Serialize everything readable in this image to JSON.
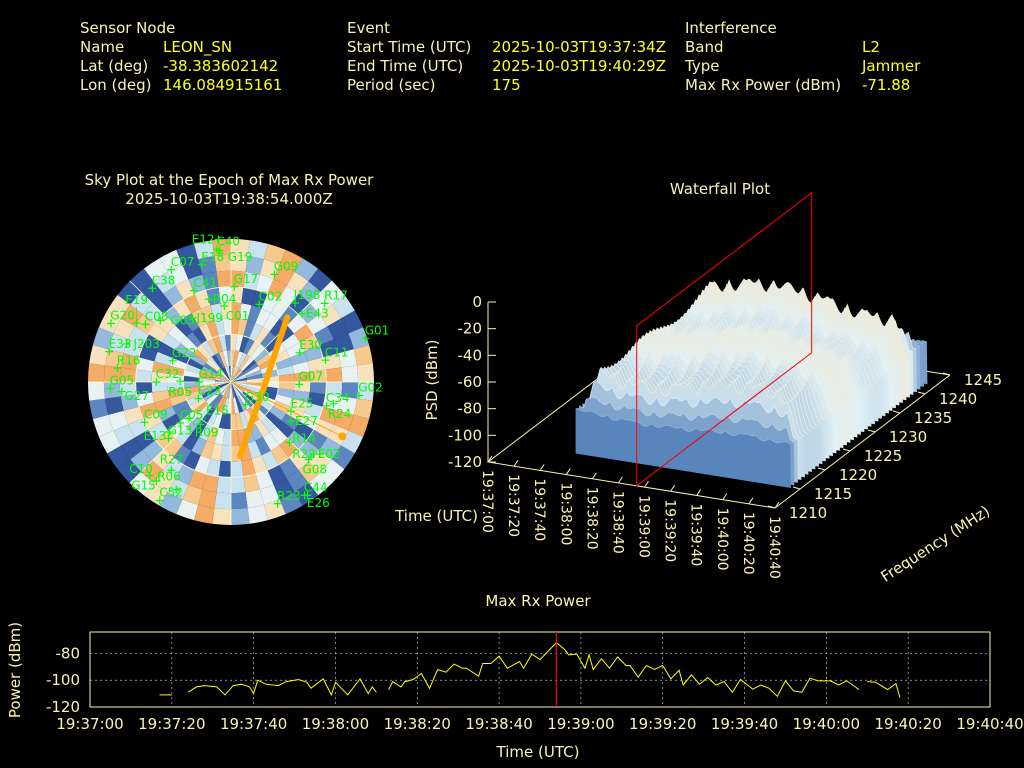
{
  "header": {
    "sensor": {
      "title": "Sensor Node",
      "name_label": "Name",
      "name": "LEON_SN",
      "lat_label": "Lat (deg)",
      "lat": "-38.383602142",
      "lon_label": "Lon (deg)",
      "lon": "146.084915161"
    },
    "event": {
      "title": "Event",
      "start_label": "Start Time (UTC)",
      "start": "2025-10-03T19:37:34Z",
      "end_label": "End Time (UTC)",
      "end": "2025-10-03T19:40:29Z",
      "period_label": "Period (sec)",
      "period": "175"
    },
    "interference": {
      "title": "Interference",
      "band_label": "Band",
      "band": "L2",
      "type_label": "Type",
      "type": "Jammer",
      "power_label": "Max Rx Power (dBm)",
      "power": "-71.88"
    }
  },
  "colors": {
    "label": "#f8f4b0",
    "value": "#ffff20",
    "satellite": "#00ff00",
    "jammer": "#ffa500",
    "marker": "#ff0000",
    "series": "#ffff00"
  },
  "chart_data": [
    {
      "type": "polar-scatter",
      "title": "Sky Plot at the Epoch of Max Rx Power",
      "subtitle": "2025-10-03T19:38:54.000Z",
      "elevation_rings": [
        0,
        30,
        60
      ],
      "satellites": [
        {
          "id": "G01",
          "az": 72,
          "el": 1
        },
        {
          "id": "C11",
          "az": 77,
          "el": 29
        },
        {
          "id": "E30",
          "az": 67,
          "el": 43
        },
        {
          "id": "G07",
          "az": 92,
          "el": 47
        },
        {
          "id": "G02",
          "az": 96,
          "el": 9
        },
        {
          "id": "C34",
          "az": 104,
          "el": 28
        },
        {
          "id": "R24",
          "az": 102,
          "el": 24
        },
        {
          "id": "G30",
          "az": 147,
          "el": 73
        },
        {
          "id": "E25",
          "az": 116,
          "el": 48
        },
        {
          "id": "E27",
          "az": 123,
          "el": 45
        },
        {
          "id": "R14",
          "az": 136,
          "el": 37
        },
        {
          "id": "E02",
          "az": 131,
          "el": 21
        },
        {
          "id": "G08",
          "az": 135,
          "el": 21
        },
        {
          "id": "R22",
          "az": 129,
          "el": 18
        },
        {
          "id": "C44",
          "az": 147,
          "el": 5
        },
        {
          "id": "E26",
          "az": 146,
          "el": 4
        },
        {
          "id": "R23",
          "az": 159,
          "el": 8
        },
        {
          "id": "C52",
          "az": 211,
          "el": 3
        },
        {
          "id": "R06",
          "az": 207,
          "el": 14
        },
        {
          "id": "G15",
          "az": 221,
          "el": 12
        },
        {
          "id": "C10",
          "az": 217,
          "el": 12
        },
        {
          "id": "R27",
          "az": 214,
          "el": 23
        },
        {
          "id": "G13",
          "az": 228,
          "el": 37
        },
        {
          "id": "C09",
          "az": 245,
          "el": 30
        },
        {
          "id": "C05",
          "az": 231,
          "el": 49
        },
        {
          "id": "E13",
          "az": 231,
          "el": 40
        },
        {
          "id": "C23",
          "az": 243,
          "el": 67
        },
        {
          "id": "R09",
          "az": 229,
          "el": 55
        },
        {
          "id": "E15",
          "az": 216,
          "el": 57
        },
        {
          "id": "C32",
          "az": 270,
          "el": 43
        },
        {
          "id": "R05",
          "az": 271,
          "el": 58
        },
        {
          "id": "G14",
          "az": 270,
          "el": 70
        },
        {
          "id": "G22",
          "az": 290,
          "el": 51
        },
        {
          "id": "R16",
          "az": 277,
          "el": 18
        },
        {
          "id": "G05",
          "az": 267,
          "el": 14
        },
        {
          "id": "G27",
          "az": 265,
          "el": 21
        },
        {
          "id": "E33",
          "az": 284,
          "el": 11
        },
        {
          "id": "J203",
          "az": 290,
          "el": 20
        },
        {
          "id": "G20",
          "az": 296,
          "el": 6
        },
        {
          "id": "C08",
          "az": 304,
          "el": 25
        },
        {
          "id": "G03",
          "az": 311,
          "el": 31
        },
        {
          "id": "E19",
          "az": 302,
          "el": 20
        },
        {
          "id": "C38",
          "az": 320,
          "el": 13
        },
        {
          "id": "C07",
          "az": 332,
          "el": 10
        },
        {
          "id": "E18",
          "az": 346,
          "el": 14
        },
        {
          "id": "C40",
          "az": 354,
          "el": 6
        },
        {
          "id": "G19",
          "az": 355,
          "el": 7
        },
        {
          "id": "E12",
          "az": 355,
          "el": 0
        },
        {
          "id": "C41",
          "az": 338,
          "el": 28
        },
        {
          "id": "R04",
          "az": 345,
          "el": 36
        },
        {
          "id": "J199",
          "az": 329,
          "el": 43
        },
        {
          "id": "G17",
          "az": 2,
          "el": 30
        },
        {
          "id": "C01",
          "az": 355,
          "el": 42
        },
        {
          "id": "C02",
          "az": 20,
          "el": 38
        },
        {
          "id": "G09",
          "az": 22,
          "el": 17
        },
        {
          "id": "J198",
          "az": 39,
          "el": 26
        },
        {
          "id": "E43",
          "az": 46,
          "el": 28
        },
        {
          "id": "R17",
          "az": 50,
          "el": 13
        }
      ],
      "jammer_track": [
        [
          41,
          36
        ],
        [
          57,
          57
        ],
        [
          100,
          69
        ],
        [
          152,
          62
        ],
        [
          173,
          43
        ]
      ],
      "jammer_direction": {
        "az": 116,
        "el": 12
      }
    },
    {
      "type": "surface",
      "title": "Waterfall Plot",
      "xlabel": "Time (UTC)",
      "ylabel": "Frequency (MHz)",
      "zlabel": "PSD (dBm)",
      "x_ticks": [
        "19:37:00",
        "19:37:20",
        "19:37:40",
        "19:38:00",
        "19:38:20",
        "19:38:40",
        "19:39:00",
        "19:39:20",
        "19:39:40",
        "19:40:00",
        "19:40:20",
        "19:40:40"
      ],
      "y_ticks": [
        "1210",
        "1215",
        "1220",
        "1225",
        "1230",
        "1235",
        "1240",
        "1245"
      ],
      "z_ticks": [
        "0",
        "-20",
        "-40",
        "-60",
        "-80",
        "-100",
        "-120"
      ],
      "zlim": [
        -120,
        0
      ],
      "epoch_marker": "19:38:54"
    },
    {
      "type": "line",
      "title": "Max Rx Power",
      "xlabel": "Time (UTC)",
      "ylabel": "Power (dBm)",
      "x_ticks": [
        "19:37:00",
        "19:37:20",
        "19:37:40",
        "19:38:00",
        "19:38:20",
        "19:38:40",
        "19:39:00",
        "19:39:20",
        "19:39:40",
        "19:40:00",
        "19:40:20",
        "19:40:40"
      ],
      "y_ticks": [
        "-80",
        "-100",
        "-120"
      ],
      "xlim": [
        "19:37:00",
        "19:40:40"
      ],
      "ylim": [
        -120,
        -64
      ],
      "grid": true,
      "marker_time": "19:38:54",
      "segments": [
        [
          [
            "19:37:17",
            -111
          ],
          [
            "19:37:20",
            -111
          ]
        ],
        [
          [
            "19:37:24",
            -109
          ],
          [
            "19:37:26",
            -105
          ],
          [
            "19:37:28",
            -104
          ],
          [
            "19:37:31",
            -105
          ],
          [
            "19:37:33",
            -111
          ],
          [
            "19:37:35",
            -104
          ],
          [
            "19:37:37",
            -103
          ],
          [
            "19:37:39",
            -105
          ],
          [
            "19:37:40",
            -110
          ],
          [
            "19:37:41",
            -100
          ],
          [
            "19:37:43",
            -103
          ],
          [
            "19:37:46",
            -104
          ],
          [
            "19:37:48",
            -101
          ],
          [
            "19:37:51",
            -99.5
          ],
          [
            "19:37:53",
            -101.5
          ],
          [
            "19:37:54",
            -106
          ],
          [
            "19:37:57",
            -99
          ],
          [
            "19:37:59",
            -111
          ],
          [
            "19:38:00",
            -101.5
          ],
          [
            "19:38:03",
            -111
          ],
          [
            "19:38:06",
            -99
          ],
          [
            "19:38:08",
            -110
          ],
          [
            "19:38:09",
            -105
          ],
          [
            "19:38:10",
            -109
          ]
        ],
        [
          [
            "19:38:13",
            -107
          ],
          [
            "19:38:14",
            -101
          ],
          [
            "19:38:16",
            -105
          ],
          [
            "19:38:17",
            -101
          ],
          [
            "19:38:19",
            -99.5
          ],
          [
            "19:38:21",
            -95
          ],
          [
            "19:38:23",
            -106
          ],
          [
            "19:38:25",
            -92
          ],
          [
            "19:38:27",
            -94
          ],
          [
            "19:38:29",
            -88
          ],
          [
            "19:38:31",
            -91
          ],
          [
            "19:38:32",
            -91
          ],
          [
            "19:38:35",
            -97
          ],
          [
            "19:38:36",
            -87.5
          ],
          [
            "19:38:38",
            -87.5
          ],
          [
            "19:38:40",
            -82
          ],
          [
            "19:38:42",
            -91
          ],
          [
            "19:38:45",
            -86
          ],
          [
            "19:38:46",
            -91
          ],
          [
            "19:38:48",
            -80.5
          ],
          [
            "19:38:50",
            -84.6
          ],
          [
            "19:38:54",
            -71.88
          ],
          [
            "19:38:56",
            -77
          ],
          [
            "19:38:57",
            -81
          ],
          [
            "19:38:59",
            -80.5
          ],
          [
            "19:39:01",
            -91
          ],
          [
            "19:39:02",
            -81
          ],
          [
            "19:39:03",
            -92
          ],
          [
            "19:39:05",
            -84
          ],
          [
            "19:39:07",
            -91
          ],
          [
            "19:39:09",
            -82.6
          ],
          [
            "19:39:11",
            -89
          ],
          [
            "19:39:12",
            -89
          ],
          [
            "19:39:14",
            -97.7
          ],
          [
            "19:39:16",
            -89
          ],
          [
            "19:39:18",
            -92
          ],
          [
            "19:39:20",
            -89
          ],
          [
            "19:39:22",
            -99
          ],
          [
            "19:39:24",
            -92.5
          ],
          [
            "19:39:25",
            -103.6
          ],
          [
            "19:39:27",
            -96
          ],
          [
            "19:39:29",
            -103
          ],
          [
            "19:39:31",
            -98
          ],
          [
            "19:39:33",
            -103.6
          ],
          [
            "19:39:35",
            -101
          ],
          [
            "19:39:37",
            -109
          ],
          [
            "19:39:39",
            -99.5
          ],
          [
            "19:39:42",
            -106.7
          ],
          [
            "19:39:44",
            -103.6
          ],
          [
            "19:39:46",
            -106
          ],
          [
            "19:39:48",
            -112
          ],
          [
            "19:39:50",
            -100.5
          ],
          [
            "19:39:52",
            -108
          ],
          [
            "19:39:54",
            -109
          ],
          [
            "19:39:56",
            -98.5
          ],
          [
            "19:39:58",
            -100.5
          ],
          [
            "19:40:01",
            -100.5
          ],
          [
            "19:40:03",
            -103.6
          ],
          [
            "19:40:05",
            -100.5
          ],
          [
            "19:40:08",
            -107
          ]
        ],
        [
          [
            "19:40:10",
            -101
          ],
          [
            "19:40:12",
            -101.5
          ],
          [
            "19:40:15",
            -107
          ],
          [
            "19:40:17",
            -102.5
          ],
          [
            "19:40:18",
            -113
          ]
        ]
      ]
    }
  ]
}
